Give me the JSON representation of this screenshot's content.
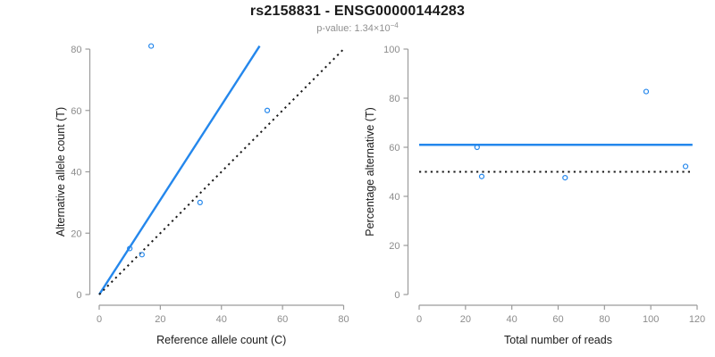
{
  "header": {
    "title": "rs2158831 - ENSG00000144283",
    "subtitle_base": "p-value: 1.34×10",
    "subtitle_exponent": "−4"
  },
  "colors": {
    "accent_blue": "#2487EC",
    "line_black": "#1a1a1a",
    "tick_gray": "#8c8c8c",
    "axis_gray": "#9b9b9b",
    "label_black": "#1a1a1a",
    "subtitle_gray": "#909090",
    "background": "#ffffff"
  },
  "chart_data": [
    {
      "type": "scatter",
      "panel": "left",
      "xlabel": "Reference allele count (C)",
      "ylabel": "Alternative allele count (T)",
      "xlim": [
        0,
        80
      ],
      "ylim": [
        0,
        80
      ],
      "xticks": [
        0,
        20,
        40,
        60,
        80
      ],
      "yticks": [
        0,
        20,
        40,
        60,
        80
      ],
      "grid": false,
      "legend": "none",
      "marker": "open-circle",
      "points": [
        {
          "x": 10,
          "y": 15
        },
        {
          "x": 14,
          "y": 13
        },
        {
          "x": 17,
          "y": 81
        },
        {
          "x": 33,
          "y": 30
        },
        {
          "x": 55,
          "y": 60
        }
      ],
      "lines": [
        {
          "name": "fitted-ratio-line",
          "style": "solid",
          "color_key": "accent_blue",
          "from": [
            0,
            0
          ],
          "to": [
            52.5,
            81
          ]
        },
        {
          "name": "identity-line",
          "style": "dotted",
          "color_key": "line_black",
          "from": [
            0,
            0
          ],
          "to": [
            80.5,
            80.5
          ]
        }
      ]
    },
    {
      "type": "scatter",
      "panel": "right",
      "xlabel": "Total number of reads",
      "ylabel": "Percentage alternative (T)",
      "xlim": [
        0,
        120
      ],
      "ylim": [
        0,
        100
      ],
      "xticks": [
        0,
        20,
        40,
        60,
        80,
        100,
        120
      ],
      "yticks": [
        0,
        20,
        40,
        60,
        80,
        100
      ],
      "grid": false,
      "legend": "none",
      "marker": "open-circle",
      "points": [
        {
          "x": 25,
          "y": 60
        },
        {
          "x": 27,
          "y": 48.1
        },
        {
          "x": 63,
          "y": 47.6
        },
        {
          "x": 98,
          "y": 82.7
        },
        {
          "x": 115,
          "y": 52.2
        }
      ],
      "lines": [
        {
          "name": "mean-percentage-line",
          "style": "solid",
          "color_key": "accent_blue",
          "from": [
            0,
            61
          ],
          "to": [
            118,
            61
          ]
        },
        {
          "name": "expected-50pct-line",
          "style": "dotted",
          "color_key": "line_black",
          "from": [
            0,
            50
          ],
          "to": [
            118,
            50
          ]
        }
      ]
    }
  ]
}
